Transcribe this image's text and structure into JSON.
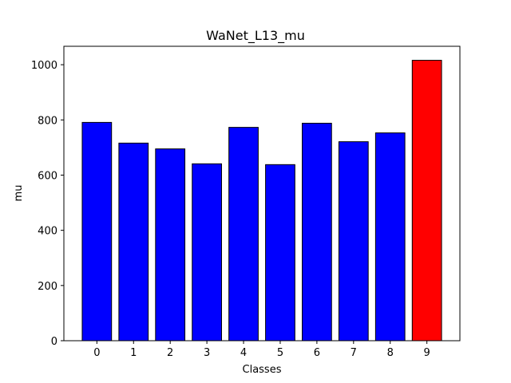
{
  "chart_data": {
    "type": "bar",
    "title": "WaNet_L13_mu",
    "xlabel": "Classes",
    "ylabel": "mu",
    "categories": [
      "0",
      "1",
      "2",
      "3",
      "4",
      "5",
      "6",
      "7",
      "8",
      "9"
    ],
    "values": [
      791,
      716,
      695,
      641,
      773,
      638,
      788,
      721,
      753,
      1016
    ],
    "bar_colors": [
      "#0000ff",
      "#0000ff",
      "#0000ff",
      "#0000ff",
      "#0000ff",
      "#0000ff",
      "#0000ff",
      "#0000ff",
      "#0000ff",
      "#ff0000"
    ],
    "edge_color": "#000000",
    "yticks": [
      0,
      200,
      400,
      600,
      800,
      1000
    ],
    "ylim": [
      0,
      1066.8
    ],
    "xlim": [
      -0.9,
      9.9
    ],
    "grid": false,
    "legend": false
  }
}
